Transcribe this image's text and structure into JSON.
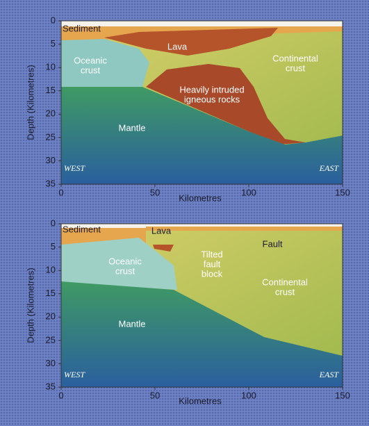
{
  "panels": [
    {
      "y_axis_title": "Depth (Kilometres)",
      "yticks": [
        0,
        5,
        10,
        15,
        20,
        25,
        30,
        35
      ],
      "x_axis_title": "Kilometres",
      "xticks": [
        0,
        50,
        100,
        150
      ],
      "labels": {
        "sediment": [
          "Sediment"
        ],
        "lava": [
          "Lava"
        ],
        "oceanic": [
          "Oceanic",
          "crust"
        ],
        "continental": [
          "Continental",
          "crust"
        ],
        "intruded": [
          "Heavily intruded",
          "igneous rocks"
        ],
        "mantle": [
          "Mantle"
        ],
        "west": [
          "WEST"
        ],
        "east": [
          "EAST"
        ]
      }
    },
    {
      "y_axis_title": "Depth (Kilometres)",
      "yticks": [
        0,
        5,
        10,
        15,
        20,
        25,
        30,
        35
      ],
      "x_axis_title": "Kilometres",
      "xticks": [
        0,
        50,
        100,
        150
      ],
      "labels": {
        "sediment": [
          "Sediment"
        ],
        "lava": [
          "Lava"
        ],
        "oceanic": [
          "Oceanic",
          "crust"
        ],
        "tilted": [
          "Tilted",
          "fault",
          "block"
        ],
        "fault": [
          "Fault"
        ],
        "continental": [
          "Continental",
          "crust"
        ],
        "mantle": [
          "Mantle"
        ],
        "west": [
          "WEST"
        ],
        "east": [
          "EAST"
        ]
      }
    }
  ]
}
